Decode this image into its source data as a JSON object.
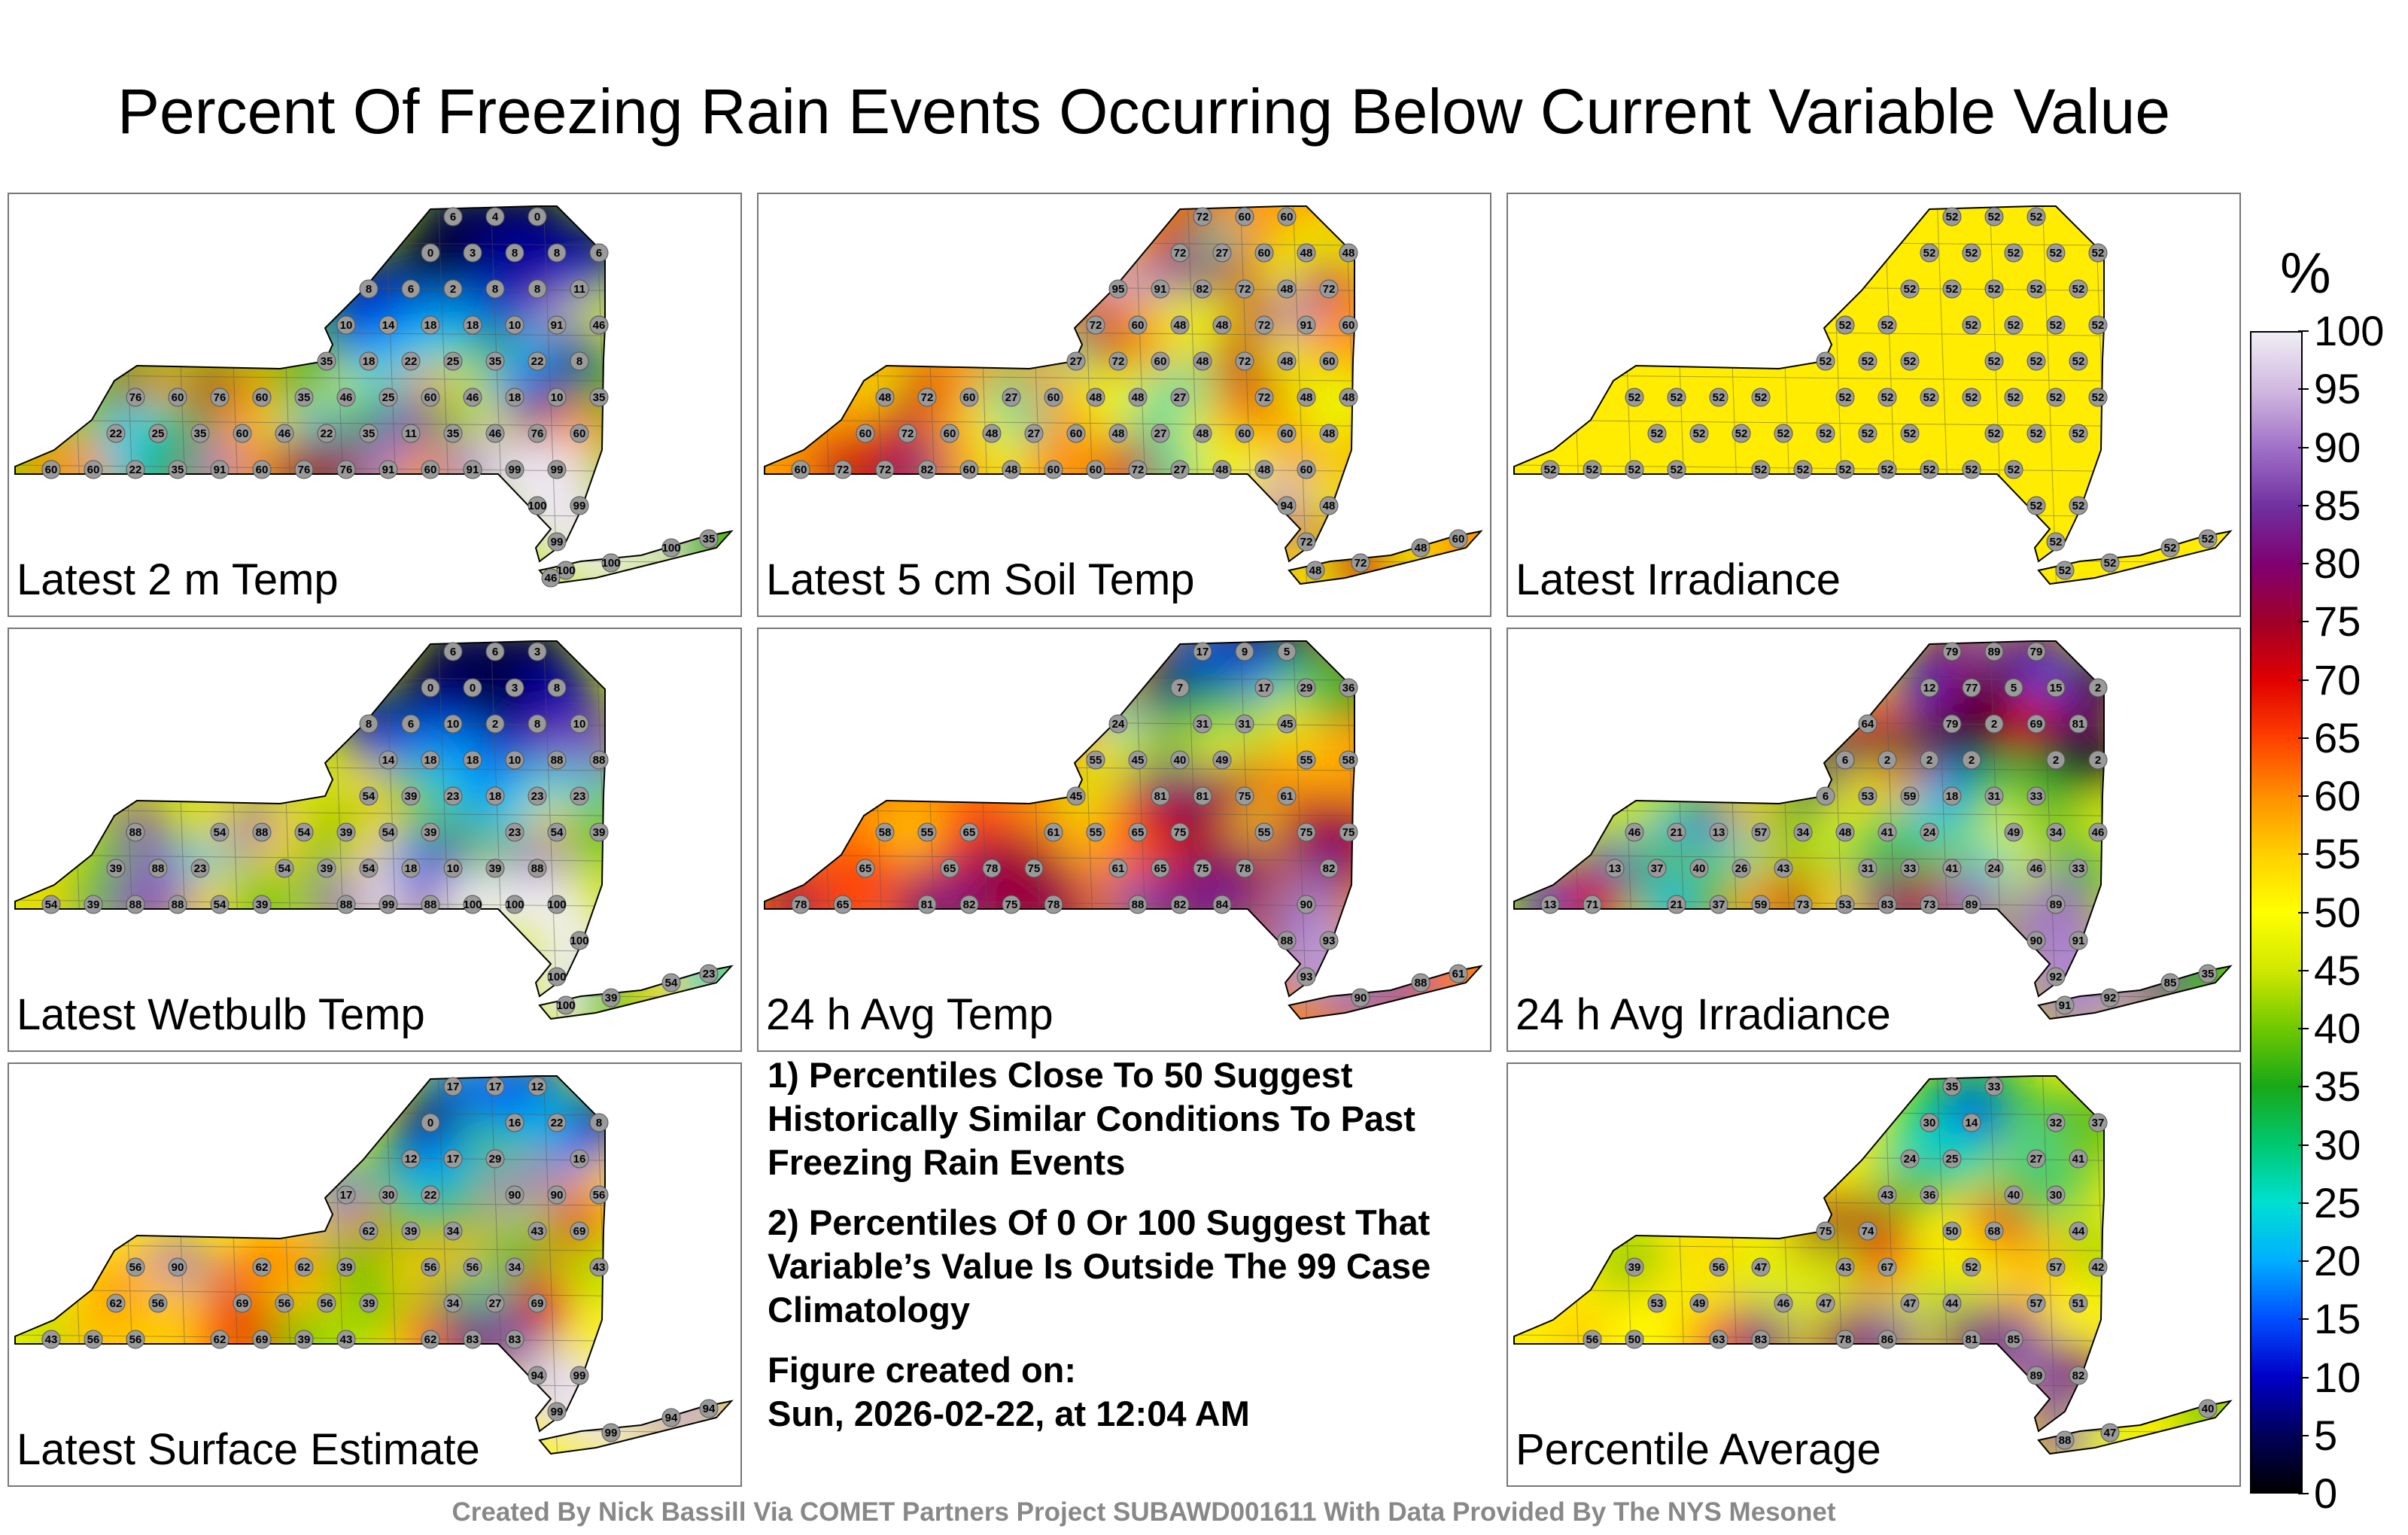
{
  "chart_data": {
    "type": "heatmap",
    "title": "Percent Of Freezing Rain Events Occurring Below Current Variable Value",
    "colorbar": {
      "unit": "%",
      "range": [
        0,
        100
      ],
      "ticks": [
        "100",
        "95",
        "90",
        "85",
        "80",
        "75",
        "70",
        "65",
        "60",
        "55",
        "50",
        "45",
        "40",
        "35",
        "30",
        "25",
        "20",
        "15",
        "10",
        "5",
        "0"
      ],
      "colors": [
        "#000000",
        "#00005a",
        "#0000c8",
        "#0050ff",
        "#00b0ff",
        "#00e0d0",
        "#00c870",
        "#18a818",
        "#70c800",
        "#d0e800",
        "#ffff00",
        "#ffd000",
        "#ff9000",
        "#ff4000",
        "#e00000",
        "#a00028",
        "#800070",
        "#7030a0",
        "#a070c8",
        "#d0b8e0",
        "#f0eef4"
      ]
    },
    "panels": [
      {
        "id": "latest-2m-temp",
        "label": "Latest 2 m Temp",
        "values": [
          6,
          6,
          4,
          0,
          0,
          3,
          8,
          8,
          6,
          8,
          6,
          10,
          2,
          8,
          8,
          11,
          10,
          14,
          18,
          18,
          10,
          91,
          76,
          46,
          35,
          18,
          22,
          25,
          35,
          22,
          8,
          76,
          60,
          76,
          25,
          60,
          35,
          46,
          25,
          60,
          46,
          18,
          10,
          35,
          22,
          46,
          25,
          35,
          60,
          46,
          22,
          35,
          11,
          35,
          46,
          76,
          60,
          46,
          60,
          60,
          22,
          35,
          91,
          60,
          76,
          76,
          91,
          60,
          99,
          91,
          99,
          99,
          100,
          99,
          99,
          100,
          100,
          100,
          35,
          46
        ]
      },
      {
        "id": "latest-5cm-soil-temp",
        "label": "Latest 5 cm Soil Temp",
        "values": [
          72,
          60,
          60,
          72,
          27,
          60,
          48,
          48,
          95,
          91,
          82,
          72,
          48,
          72,
          72,
          60,
          48,
          48,
          72,
          91,
          60,
          27,
          72,
          60,
          48,
          72,
          48,
          60,
          48,
          72,
          60,
          27,
          60,
          48,
          48,
          27,
          72,
          48,
          48,
          60,
          72,
          60,
          48,
          27,
          60,
          48,
          27,
          48,
          60,
          60,
          48,
          60,
          72,
          72,
          82,
          60,
          48,
          60,
          60,
          72,
          27,
          48,
          48,
          60,
          94,
          48,
          72,
          48,
          72,
          48,
          60
        ]
      },
      {
        "id": "latest-irradiance",
        "label": "Latest Irradiance",
        "values": [
          52,
          52,
          52,
          52,
          52,
          52,
          52,
          52,
          52,
          52,
          52,
          52,
          52,
          52,
          52,
          52,
          52,
          52,
          52,
          52,
          52,
          52,
          52,
          52,
          52,
          52,
          52,
          52,
          52,
          52,
          52,
          52,
          52,
          52,
          52,
          52,
          52,
          52,
          52,
          52,
          52,
          52,
          52,
          52,
          52,
          52,
          52,
          52,
          52,
          52,
          52,
          52,
          52,
          52,
          52,
          52,
          52,
          52,
          52,
          52,
          52,
          52,
          52,
          52
        ]
      },
      {
        "id": "latest-wetbulb-temp",
        "label": "Latest Wetbulb Temp",
        "values": [
          6,
          6,
          3,
          0,
          0,
          3,
          8,
          8,
          6,
          10,
          2,
          8,
          10,
          14,
          18,
          18,
          10,
          88,
          88,
          54,
          39,
          23,
          18,
          23,
          23,
          88,
          54,
          88,
          54,
          39,
          54,
          39,
          23,
          54,
          39,
          39,
          88,
          23,
          54,
          39,
          54,
          18,
          10,
          39,
          88,
          54,
          39,
          88,
          88,
          54,
          39,
          88,
          99,
          88,
          100,
          100,
          100,
          100,
          100,
          100,
          39,
          54,
          23
        ]
      },
      {
        "id": "24h-avg-temp",
        "label": "24 h Avg Temp",
        "values": [
          17,
          9,
          5,
          7,
          17,
          29,
          36,
          24,
          31,
          31,
          45,
          55,
          45,
          40,
          49,
          55,
          58,
          45,
          81,
          81,
          75,
          61,
          58,
          55,
          65,
          61,
          55,
          65,
          75,
          55,
          75,
          75,
          65,
          65,
          78,
          75,
          61,
          65,
          75,
          78,
          82,
          78,
          65,
          81,
          82,
          75,
          78,
          88,
          82,
          84,
          90,
          88,
          93,
          93,
          90,
          88,
          61
        ]
      },
      {
        "id": "24h-avg-irradiance",
        "label": "24 h Avg Irradiance",
        "values": [
          79,
          89,
          79,
          12,
          77,
          5,
          15,
          2,
          64,
          79,
          2,
          69,
          81,
          6,
          2,
          2,
          2,
          2,
          2,
          6,
          53,
          59,
          18,
          31,
          33,
          46,
          21,
          13,
          57,
          34,
          48,
          41,
          24,
          49,
          34,
          46,
          13,
          37,
          40,
          26,
          43,
          31,
          33,
          41,
          24,
          46,
          33,
          13,
          71,
          21,
          37,
          59,
          73,
          53,
          83,
          73,
          89,
          89,
          90,
          91,
          92,
          91,
          92,
          85,
          35
        ]
      },
      {
        "id": "latest-surface-estimate",
        "label": "Latest Surface Estimate",
        "values": [
          17,
          17,
          12,
          0,
          16,
          22,
          8,
          12,
          17,
          29,
          16,
          17,
          30,
          22,
          90,
          90,
          56,
          62,
          39,
          34,
          43,
          69,
          56,
          90,
          62,
          62,
          39,
          56,
          56,
          34,
          43,
          62,
          56,
          69,
          56,
          56,
          39,
          34,
          27,
          69,
          43,
          56,
          56,
          62,
          69,
          39,
          43,
          62,
          83,
          83,
          94,
          99,
          99,
          99,
          94,
          94
        ]
      },
      {
        "id": "percentile-average",
        "label": "Percentile Average",
        "values": [
          35,
          33,
          30,
          14,
          32,
          37,
          24,
          25,
          27,
          41,
          43,
          36,
          40,
          30,
          75,
          74,
          50,
          68,
          44,
          39,
          56,
          47,
          43,
          67,
          52,
          57,
          42,
          53,
          49,
          46,
          47,
          47,
          44,
          57,
          51,
          56,
          50,
          63,
          83,
          78,
          86,
          81,
          85,
          89,
          82,
          88,
          47,
          40
        ]
      }
    ],
    "xlabel": "",
    "ylabel": ""
  },
  "notes": {
    "note1": "1) Percentiles Close To 50 Suggest Historically Similar Conditions To Past Freezing Rain Events",
    "note2": "2) Percentiles Of 0 Or 100 Suggest That Variable’s Value Is Outside The 99 Case Climatology",
    "figure_created_label": "Figure created on:",
    "figure_created_value": "Sun, 2026-02-22, at 12:04 AM"
  },
  "footer": "Created By Nick Bassill Via COMET Partners Project SUBAWD001611 With Data Provided By The NYS Mesonet"
}
